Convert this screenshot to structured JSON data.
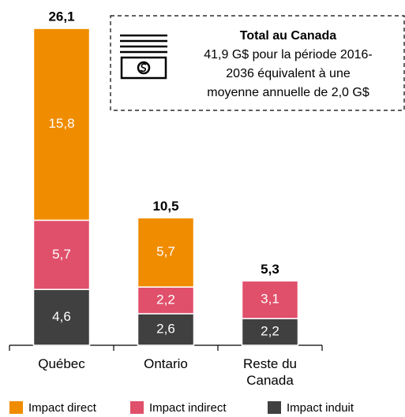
{
  "chart_data": {
    "type": "stacked_bar",
    "categories": [
      "Québec",
      "Ontario",
      "Reste du Canada"
    ],
    "series": [
      {
        "name": "Impact direct",
        "color": "#f08c00",
        "values": [
          15.8,
          5.7,
          null
        ],
        "value_labels": [
          "15,8",
          "5,7",
          null
        ]
      },
      {
        "name": "Impact indirect",
        "color": "#e0506b",
        "values": [
          5.7,
          2.2,
          3.1
        ],
        "value_labels": [
          "5,7",
          "2,2",
          "3,1"
        ]
      },
      {
        "name": "Impact induit",
        "color": "#404040",
        "values": [
          4.6,
          2.6,
          2.2
        ],
        "value_labels": [
          "4,6",
          "2,6",
          "2,2"
        ]
      }
    ],
    "totals": [
      26.1,
      10.5,
      5.3
    ],
    "total_labels": [
      "26,1",
      "10,5",
      "5,3"
    ],
    "annotation": {
      "title": "Total au Canada",
      "lines": [
        "41,9 G$ pour la période 2016-",
        "2036 équivalent à une",
        "moyenne annuelle de 2,0 G$"
      ]
    }
  }
}
